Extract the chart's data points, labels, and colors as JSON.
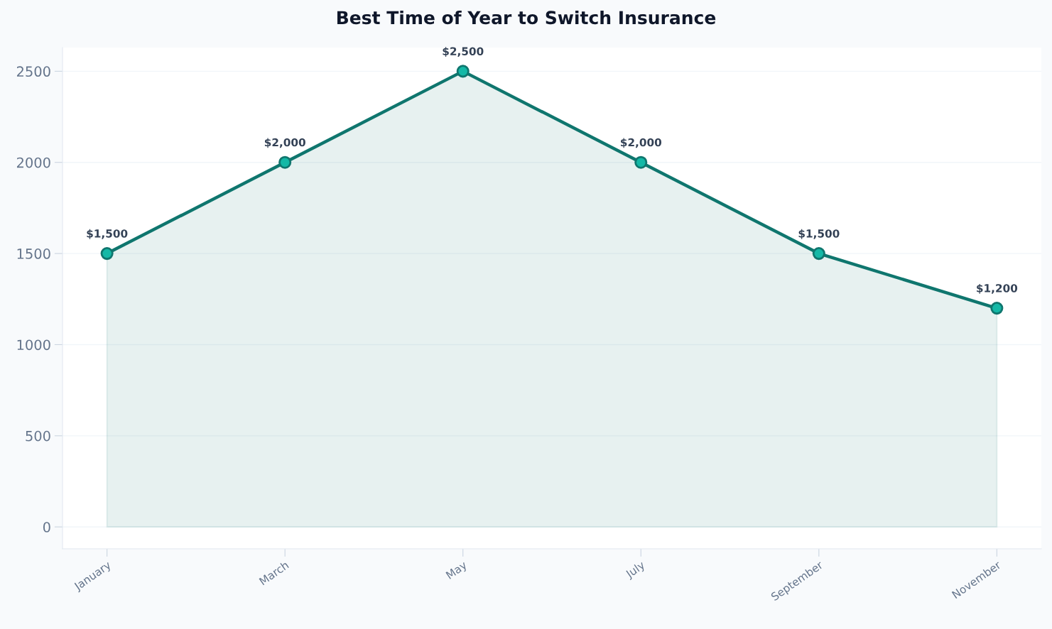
{
  "chart_data": {
    "type": "area",
    "title": "Best Time of Year to Switch Insurance",
    "categories": [
      "January",
      "March",
      "May",
      "July",
      "September",
      "November"
    ],
    "series": [
      {
        "color": "#0f766e",
        "values": [
          1500,
          2000,
          2500,
          2000,
          1500,
          1200
        ],
        "value_labels": [
          "$1,500",
          "$2,000",
          "$2,500",
          "$2,000",
          "$1,500",
          "$1,200"
        ]
      }
    ],
    "ylim": [
      -120,
      2630
    ],
    "yticks": [
      0,
      500,
      1000,
      1500,
      2000,
      2500
    ],
    "grid": "y",
    "marker": "circle",
    "line_style": "solid"
  }
}
